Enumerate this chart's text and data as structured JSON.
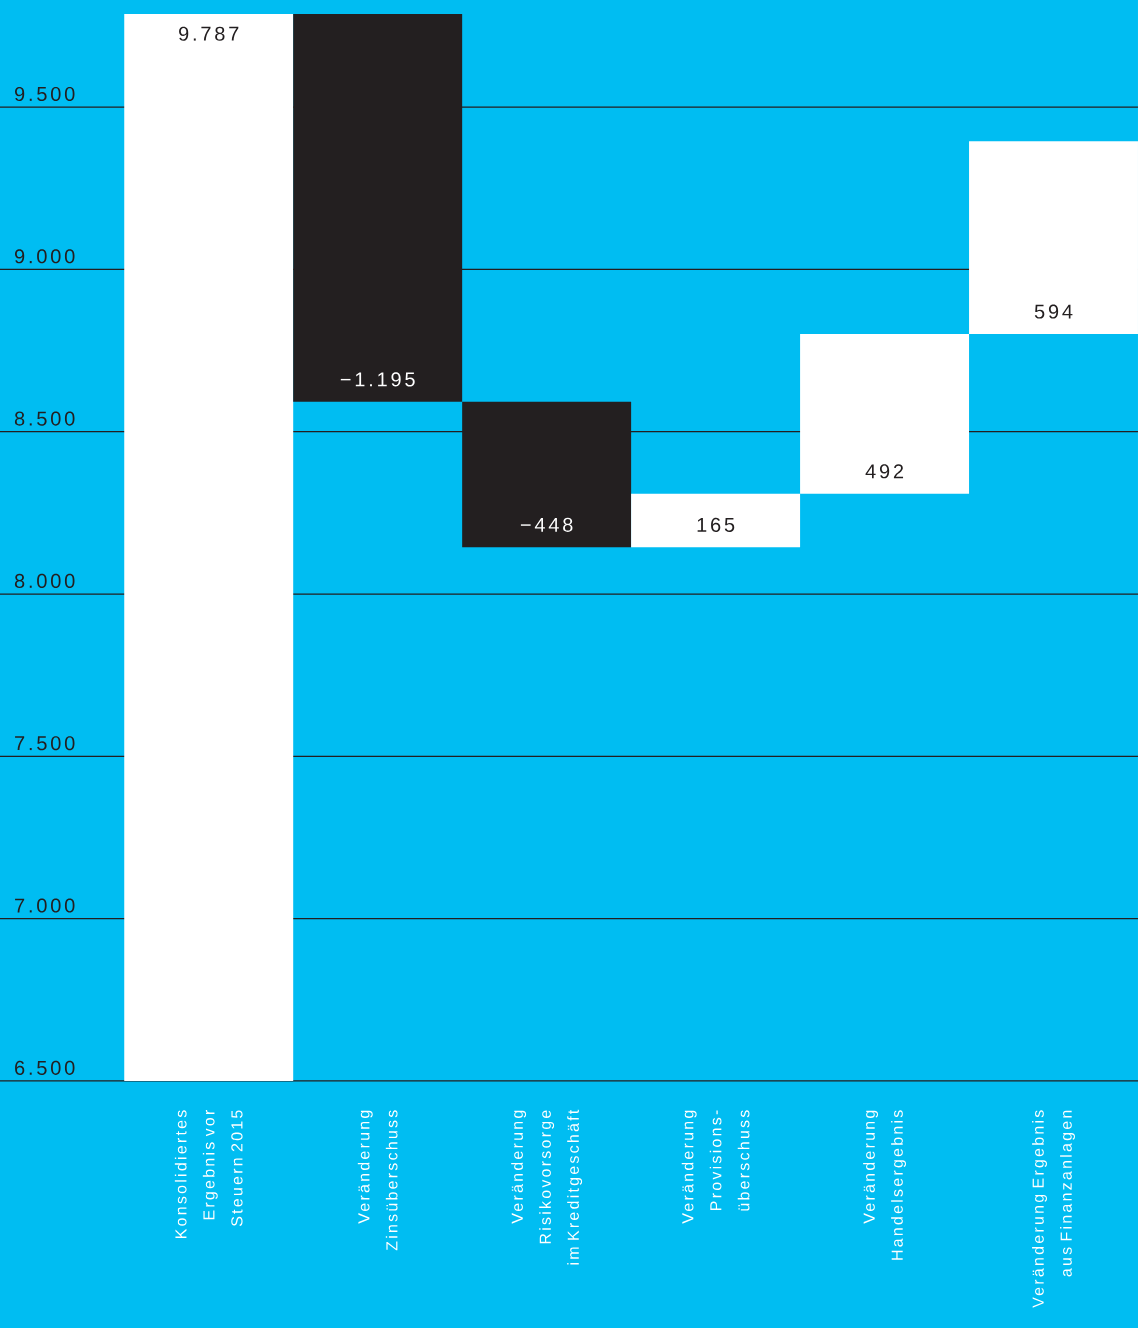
{
  "chart_data": {
    "type": "bar",
    "categories": [
      "Konsolidiertes Ergebnis vor Steuern 2015",
      "Veränderung Zinsüberschuss",
      "Veränderung Risikovorsorge im Kreditgeschäft",
      "Veränderung Provisions-überschuss",
      "Veränderung Handelsergebnis",
      "Veränderung Ergebnis aus Finanzanlagen"
    ],
    "values": [
      9787,
      -1195,
      -448,
      165,
      492,
      594
    ],
    "base": [
      null,
      9787,
      8592,
      8144,
      8309,
      8801
    ],
    "colors": [
      "#ffffff",
      "#231f20",
      "#231f20",
      "#ffffff",
      "#ffffff",
      "#ffffff"
    ],
    "value_labels": [
      "9.787",
      "−1.195",
      "−448",
      "165",
      "492",
      "594"
    ],
    "ylim": [
      6500,
      9830
    ],
    "yticks": [
      {
        "value": 6500,
        "label": "6.500"
      },
      {
        "value": 7000,
        "label": "7.000"
      },
      {
        "value": 7500,
        "label": "7.500"
      },
      {
        "value": 8000,
        "label": "8.000"
      },
      {
        "value": 8500,
        "label": "8.500"
      },
      {
        "value": 9000,
        "label": "9.000"
      },
      {
        "value": 9500,
        "label": "9.500"
      }
    ],
    "grid": "y"
  }
}
